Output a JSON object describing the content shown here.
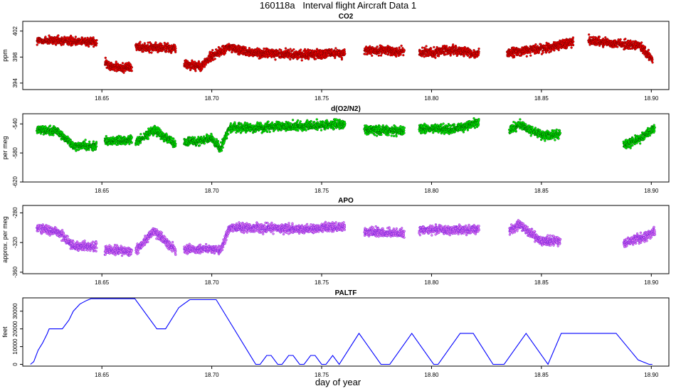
{
  "title": "160118a   Interval flight Aircraft Data 1",
  "xlabel": "day of year",
  "chart_data": [
    {
      "type": "scatter",
      "title": "CO2",
      "ylabel": "ppm",
      "xlim": [
        18.614,
        18.908
      ],
      "ylim": [
        393.0,
        403.5
      ],
      "yticks": [
        394,
        398,
        402
      ],
      "xticks": [
        18.65,
        18.7,
        18.75,
        18.8,
        18.85,
        18.9
      ],
      "colors": {
        "fill": "#ff0000",
        "edge": "#7a0000"
      },
      "segments": [
        [
          18.6205,
          18.6475
        ],
        [
          18.6515,
          18.6635
        ],
        [
          18.6655,
          18.6835
        ],
        [
          18.6875,
          18.7605
        ],
        [
          18.7695,
          18.7875
        ],
        [
          18.7945,
          18.8215
        ],
        [
          18.8345,
          18.8645
        ],
        [
          18.8715,
          18.9005
        ]
      ],
      "series": [
        {
          "name": "CO2",
          "x": [
            18.6205,
            18.635,
            18.647,
            18.6515,
            18.658,
            18.6635,
            18.6655,
            18.674,
            18.6835,
            18.6875,
            18.695,
            18.7,
            18.708,
            18.72,
            18.74,
            18.76,
            18.7695,
            18.7875,
            18.7945,
            18.81,
            18.82,
            18.8215,
            18.8345,
            18.85,
            18.8645,
            18.8715,
            18.885,
            18.895,
            18.9005
          ],
          "values": [
            400.5,
            400.5,
            400.4,
            397.0,
            396.3,
            396.5,
            399.6,
            399.5,
            399.3,
            397.0,
            396.5,
            398.2,
            399.5,
            398.6,
            398.4,
            398.6,
            399.0,
            398.9,
            398.6,
            399.1,
            398.4,
            398.8,
            398.6,
            399.3,
            400.3,
            400.6,
            400.1,
            399.7,
            397.5
          ]
        }
      ]
    },
    {
      "type": "scatter",
      "title": "d(O2/N2)",
      "ylabel": "per meg",
      "xlim": [
        18.614,
        18.908
      ],
      "ylim": [
        -620.0,
        -526.0
      ],
      "yticks": [
        -620,
        -580,
        -540
      ],
      "xticks": [
        18.65,
        18.7,
        18.75,
        18.8,
        18.85,
        18.9
      ],
      "colors": {
        "fill": "#00ff00",
        "edge": "#006000"
      },
      "segments": [
        [
          18.6205,
          18.6475
        ],
        [
          18.6515,
          18.6635
        ],
        [
          18.6655,
          18.6835
        ],
        [
          18.6875,
          18.7605
        ],
        [
          18.7695,
          18.7875
        ],
        [
          18.7945,
          18.8215
        ],
        [
          18.8355,
          18.8585
        ],
        [
          18.8875,
          18.9015
        ]
      ],
      "series": [
        {
          "name": "d(O2/N2)",
          "x": [
            18.6205,
            18.63,
            18.637,
            18.647,
            18.6515,
            18.6635,
            18.6655,
            18.674,
            18.6835,
            18.6875,
            18.7,
            18.704,
            18.708,
            18.72,
            18.74,
            18.76,
            18.7695,
            18.7875,
            18.7945,
            18.81,
            18.8215,
            18.8355,
            18.84,
            18.85,
            18.8585,
            18.8875,
            18.895,
            18.9015
          ],
          "values": [
            -548,
            -550,
            -570,
            -570,
            -564,
            -562,
            -566,
            -548,
            -568,
            -566,
            -560,
            -575,
            -545,
            -545,
            -543,
            -540,
            -548,
            -550,
            -547,
            -547,
            -538,
            -548,
            -541,
            -555,
            -555,
            -568,
            -560,
            -545
          ]
        }
      ]
    },
    {
      "type": "scatter",
      "title": "APO",
      "ylabel": "approx. per meg",
      "xlim": [
        18.614,
        18.908
      ],
      "ylim": [
        -362.0,
        -270.0
      ],
      "yticks": [
        -360,
        -320,
        -280
      ],
      "xticks": [
        18.65,
        18.7,
        18.75,
        18.8,
        18.85,
        18.9
      ],
      "colors": {
        "fill": "#ee82ee",
        "edge": "#7a20e0"
      },
      "segments": [
        [
          18.6205,
          18.6475
        ],
        [
          18.6515,
          18.6635
        ],
        [
          18.6655,
          18.6835
        ],
        [
          18.6875,
          18.7605
        ],
        [
          18.7695,
          18.7875
        ],
        [
          18.7945,
          18.8215
        ],
        [
          18.8355,
          18.8585
        ],
        [
          18.8875,
          18.9015
        ]
      ],
      "series": [
        {
          "name": "APO",
          "x": [
            18.6205,
            18.63,
            18.637,
            18.647,
            18.6515,
            18.6635,
            18.6655,
            18.674,
            18.6835,
            18.6875,
            18.7,
            18.704,
            18.708,
            18.72,
            18.74,
            18.76,
            18.7695,
            18.7875,
            18.7945,
            18.81,
            18.8215,
            18.8355,
            18.84,
            18.85,
            18.8585,
            18.8875,
            18.895,
            18.9015
          ],
          "values": [
            -300,
            -305,
            -325,
            -325,
            -330,
            -332,
            -330,
            -305,
            -330,
            -330,
            -328,
            -332,
            -300,
            -300,
            -302,
            -298,
            -305,
            -308,
            -303,
            -303,
            -302,
            -305,
            -295,
            -318,
            -318,
            -320,
            -315,
            -305
          ]
        }
      ]
    },
    {
      "type": "line",
      "title": "PALTF",
      "ylabel": "feet",
      "xlim": [
        18.614,
        18.908
      ],
      "ylim": [
        -1000,
        37500
      ],
      "yticks": [
        0,
        10000,
        20000,
        30000
      ],
      "xticks": [
        18.65,
        18.7,
        18.75,
        18.8,
        18.85,
        18.9
      ],
      "colors": {
        "line": "#0000ff"
      },
      "series": [
        {
          "name": "PALTF",
          "x": [
            18.6175,
            18.619,
            18.621,
            18.623,
            18.625,
            18.626,
            18.627,
            18.628,
            18.632,
            18.635,
            18.637,
            18.64,
            18.643,
            18.645,
            18.665,
            18.675,
            18.679,
            18.685,
            18.69,
            18.702,
            18.72,
            18.722,
            18.725,
            18.727,
            18.73,
            18.732,
            18.735,
            18.737,
            18.74,
            18.742,
            18.745,
            18.747,
            18.75,
            18.752,
            18.755,
            18.758,
            18.767,
            18.777,
            18.781,
            18.791,
            18.801,
            18.803,
            18.813,
            18.819,
            18.828,
            18.833,
            18.843,
            18.853,
            18.859,
            18.884,
            18.894,
            18.899,
            18.9005
          ],
          "values": [
            0,
            1500,
            8000,
            12000,
            17000,
            20000,
            20000,
            20000,
            20000,
            25000,
            30000,
            34000,
            36000,
            37000,
            37000,
            20000,
            20000,
            32000,
            36500,
            36500,
            0,
            0,
            5000,
            5000,
            0,
            0,
            5000,
            5000,
            0,
            0,
            5000,
            5000,
            0,
            0,
            5000,
            0,
            17500,
            0,
            0,
            17500,
            0,
            0,
            17500,
            17500,
            0,
            0,
            17500,
            0,
            17500,
            17500,
            2500,
            0,
            0
          ]
        }
      ]
    }
  ]
}
